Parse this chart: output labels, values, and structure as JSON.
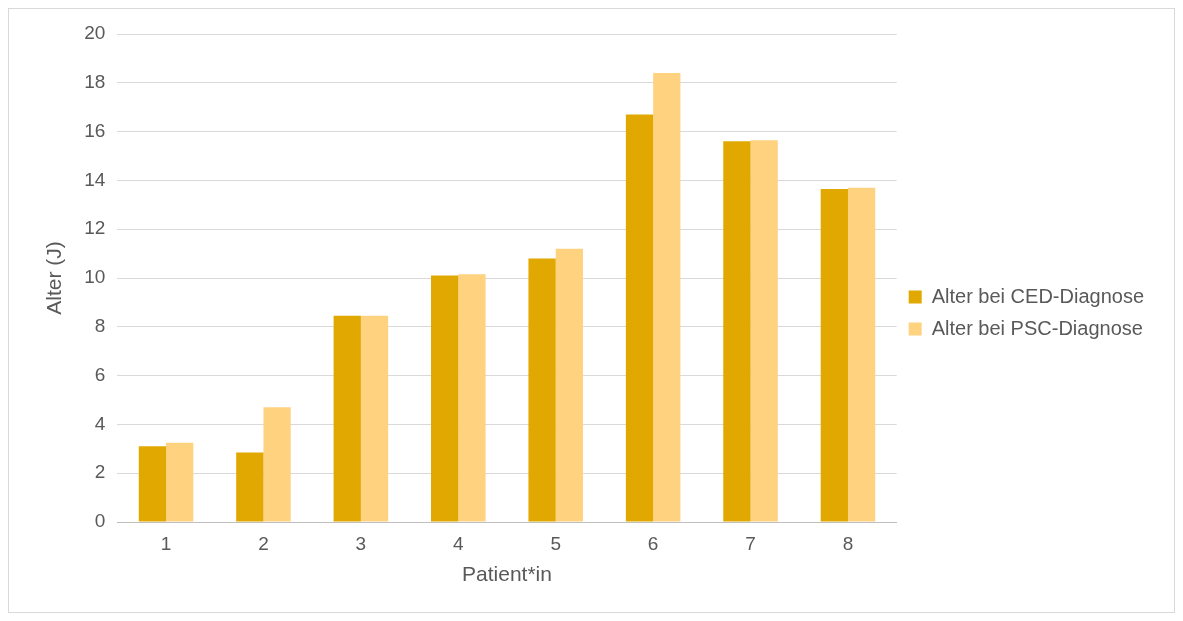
{
  "chart_data": {
    "type": "bar",
    "xlabel": "Patient*in",
    "ylabel": "Alter (J)",
    "categories": [
      "1",
      "2",
      "3",
      "4",
      "5",
      "6",
      "7",
      "8"
    ],
    "series": [
      {
        "name": "Alter bei CED-Diagnose",
        "color": "#e0a800",
        "values": [
          3.1,
          2.85,
          8.45,
          10.1,
          10.8,
          16.7,
          15.6,
          13.65
        ]
      },
      {
        "name": "Alter bei PSC-Diagnose",
        "color": "#ffd280",
        "values": [
          3.25,
          4.7,
          8.45,
          10.15,
          11.2,
          18.4,
          15.65,
          13.7
        ]
      }
    ],
    "ylim": [
      0,
      20
    ],
    "yticks": [
      0,
      2,
      4,
      6,
      8,
      10,
      12,
      14,
      16,
      18,
      20
    ],
    "grid": "y",
    "legend": "right"
  }
}
